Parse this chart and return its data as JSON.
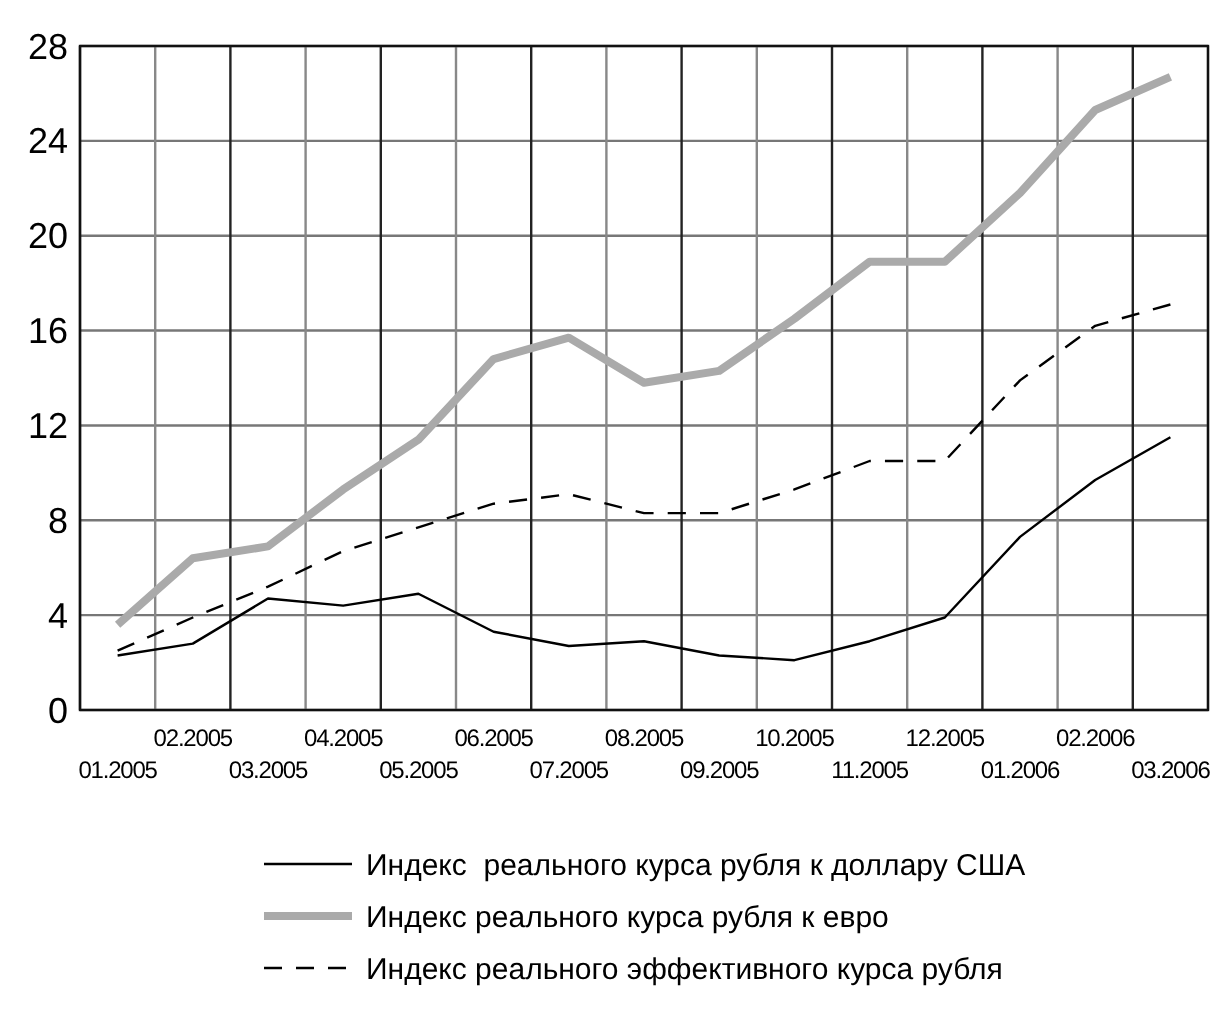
{
  "chart_data": {
    "type": "line",
    "categories": [
      "01.2005",
      "02.2005",
      "03.2005",
      "04.2005",
      "05.2005",
      "06.2005",
      "07.2005",
      "08.2005",
      "09.2005",
      "10.2005",
      "11.2005",
      "12.2005",
      "01.2006",
      "02.2006",
      "03.2006"
    ],
    "series": [
      {
        "name": "Индекс  реального курса рубля к доллару США",
        "color": "#000000",
        "line_style": "solid",
        "values": [
          2.3,
          2.8,
          4.7,
          4.4,
          4.9,
          3.3,
          2.7,
          2.9,
          2.3,
          2.1,
          2.9,
          3.9,
          7.3,
          9.7,
          11.5
        ]
      },
      {
        "name": "Индекс реального курса рубля к евро",
        "color": "#aaaaaa",
        "line_style": "solid",
        "values": [
          3.6,
          6.4,
          6.9,
          9.3,
          11.4,
          14.8,
          15.7,
          13.8,
          14.3,
          16.5,
          18.9,
          18.9,
          21.8,
          25.3,
          26.7
        ]
      },
      {
        "name": "Индекс реального эффективного курса рубля",
        "color": "#000000",
        "line_style": "dashed",
        "values": [
          2.5,
          3.9,
          5.2,
          6.7,
          7.7,
          8.7,
          9.1,
          8.3,
          8.3,
          9.3,
          10.5,
          10.5,
          13.9,
          16.2,
          17.1
        ]
      }
    ],
    "ylim": [
      0,
      28
    ],
    "yticks": [
      0,
      4,
      8,
      12,
      16,
      20,
      24,
      28
    ],
    "grid": true,
    "legend": "bottom",
    "marker": "none"
  }
}
